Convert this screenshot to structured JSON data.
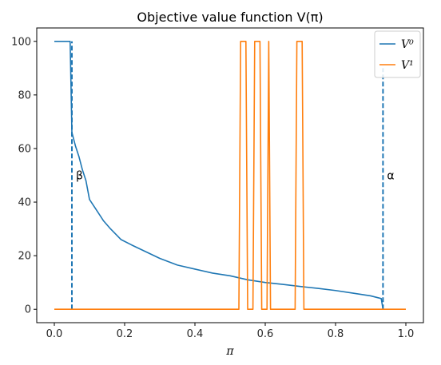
{
  "chart_data": {
    "type": "line",
    "title": "Objective value function V(π)",
    "xlabel": "π",
    "ylabel": "",
    "xlim": [
      -0.05,
      1.05
    ],
    "ylim": [
      -5,
      105
    ],
    "xticks": [
      "0.0",
      "0.2",
      "0.4",
      "0.6",
      "0.8",
      "1.0"
    ],
    "yticks": [
      "0",
      "20",
      "40",
      "60",
      "80",
      "100"
    ],
    "grid": false,
    "legend_position": "top-right",
    "colors": {
      "V0": "#1f77b4",
      "V1": "#ff7f0e"
    },
    "series": [
      {
        "name": "V⁰",
        "color": "#1f77b4",
        "x": [
          0.0,
          0.04,
          0.045,
          0.05,
          0.06,
          0.07,
          0.08,
          0.09,
          0.1,
          0.12,
          0.14,
          0.16,
          0.19,
          0.22,
          0.26,
          0.3,
          0.35,
          0.4,
          0.45,
          0.5,
          0.55,
          0.6,
          0.65,
          0.7,
          0.75,
          0.8,
          0.85,
          0.9,
          0.93,
          0.935
        ],
        "y": [
          100,
          100,
          100,
          66,
          61,
          57,
          52,
          48,
          41,
          37,
          33,
          30,
          26,
          24,
          21.5,
          19,
          16.5,
          15,
          13.5,
          12.5,
          11,
          10,
          9.3,
          8.5,
          7.8,
          7,
          6,
          5,
          4,
          0
        ]
      },
      {
        "name": "V¹",
        "color": "#ff7f0e",
        "x": [
          0.0,
          0.525,
          0.53,
          0.545,
          0.55,
          0.565,
          0.57,
          0.585,
          0.59,
          0.605,
          0.61,
          0.615,
          0.685,
          0.69,
          0.705,
          0.71,
          1.0
        ],
        "y": [
          0,
          0,
          100,
          100,
          0,
          0,
          100,
          100,
          0,
          0,
          100,
          0,
          0,
          100,
          100,
          0,
          0
        ]
      }
    ],
    "vlines": [
      {
        "x": 0.05,
        "ymin": 0,
        "ymax": 100,
        "color": "#1f77b4",
        "label": "β",
        "label_y": 50
      },
      {
        "x": 0.935,
        "ymin": 0,
        "ymax": 90,
        "color": "#1f77b4",
        "label": "α",
        "label_y": 50
      }
    ]
  }
}
